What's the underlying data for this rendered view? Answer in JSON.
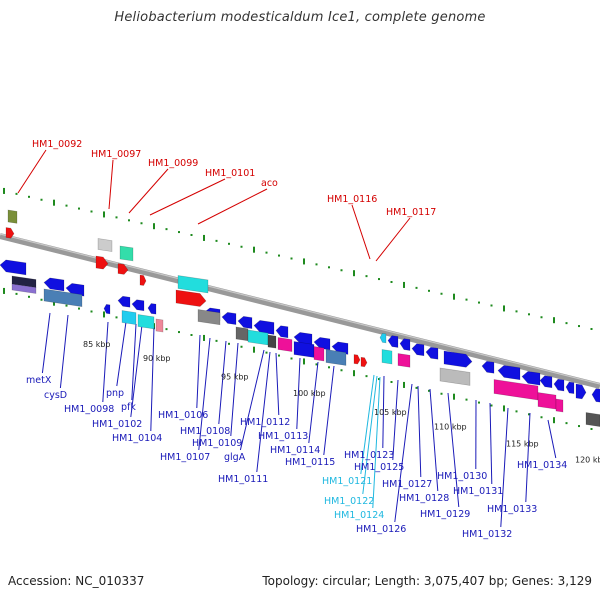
{
  "title": "Heliobacterium modesticaldum Ice1, complete genome",
  "footer": {
    "accession": "Accession: NC_010337",
    "stats": "Topology: circular; Length: 3,075,407 bp; Genes: 3,129"
  },
  "kbp_ticks": [
    {
      "label": "85 kbp",
      "t": 0.155
    },
    {
      "label": "90 kbp",
      "t": 0.255
    },
    {
      "label": "95 kbp",
      "t": 0.385
    },
    {
      "label": "100 kbp",
      "t": 0.505
    },
    {
      "label": "105 kbp",
      "t": 0.64
    },
    {
      "label": "110 kbp",
      "t": 0.74
    },
    {
      "label": "115 kbp",
      "t": 0.86
    },
    {
      "label": "120 kbp",
      "t": 0.975
    }
  ],
  "top_labels": [
    {
      "text": "HM1_0092",
      "color": "red"
    },
    {
      "text": "HM1_0097",
      "color": "red"
    },
    {
      "text": "HM1_0099",
      "color": "red"
    },
    {
      "text": "HM1_0101",
      "color": "red"
    },
    {
      "text": "aco",
      "color": "red"
    },
    {
      "text": "HM1_0116",
      "color": "red"
    },
    {
      "text": "HM1_0117",
      "color": "red"
    }
  ],
  "bottom_labels": [
    {
      "text": "metX",
      "color": "blue"
    },
    {
      "text": "cysD",
      "color": "blue"
    },
    {
      "text": "HM1_0098",
      "color": "blue"
    },
    {
      "text": "pnp",
      "color": "blue"
    },
    {
      "text": "pfk",
      "color": "blue"
    },
    {
      "text": "HM1_0102",
      "color": "blue"
    },
    {
      "text": "HM1_0104",
      "color": "blue"
    },
    {
      "text": "HM1_0106",
      "color": "blue"
    },
    {
      "text": "HM1_0108",
      "color": "blue"
    },
    {
      "text": "HM1_0109",
      "color": "blue"
    },
    {
      "text": "HM1_0107",
      "color": "blue"
    },
    {
      "text": "glgA",
      "color": "blue"
    },
    {
      "text": "HM1_0111",
      "color": "blue"
    },
    {
      "text": "HM1_0112",
      "color": "blue"
    },
    {
      "text": "HM1_0113",
      "color": "blue"
    },
    {
      "text": "HM1_0114",
      "color": "blue"
    },
    {
      "text": "HM1_0115",
      "color": "blue"
    },
    {
      "text": "HM1_0123",
      "color": "blue"
    },
    {
      "text": "HM1_0125",
      "color": "blue"
    },
    {
      "text": "HM1_0121",
      "color": "cyan"
    },
    {
      "text": "HM1_0122",
      "color": "cyan"
    },
    {
      "text": "HM1_0124",
      "color": "cyan"
    },
    {
      "text": "HM1_0126",
      "color": "blue"
    },
    {
      "text": "HM1_0127",
      "color": "blue"
    },
    {
      "text": "HM1_0128",
      "color": "blue"
    },
    {
      "text": "HM1_0129",
      "color": "blue"
    },
    {
      "text": "HM1_0130",
      "color": "blue"
    },
    {
      "text": "HM1_0131",
      "color": "blue"
    },
    {
      "text": "HM1_0133",
      "color": "blue"
    },
    {
      "text": "HM1_0132",
      "color": "blue"
    },
    {
      "text": "HM1_0134",
      "color": "blue"
    }
  ],
  "colors": {
    "backbone": "#999999",
    "tick_green": "#1e8a1e",
    "label_red": "#d40000",
    "label_blue": "#1a1ab8",
    "label_cyan": "#1fb8e0",
    "gene_blue": "#1010e0",
    "gene_red": "#ee1111",
    "gene_magenta": "#ee1199",
    "gene_cyan": "#22dddd",
    "gene_steel": "#4a7fb5",
    "gene_gray": "#888888"
  }
}
